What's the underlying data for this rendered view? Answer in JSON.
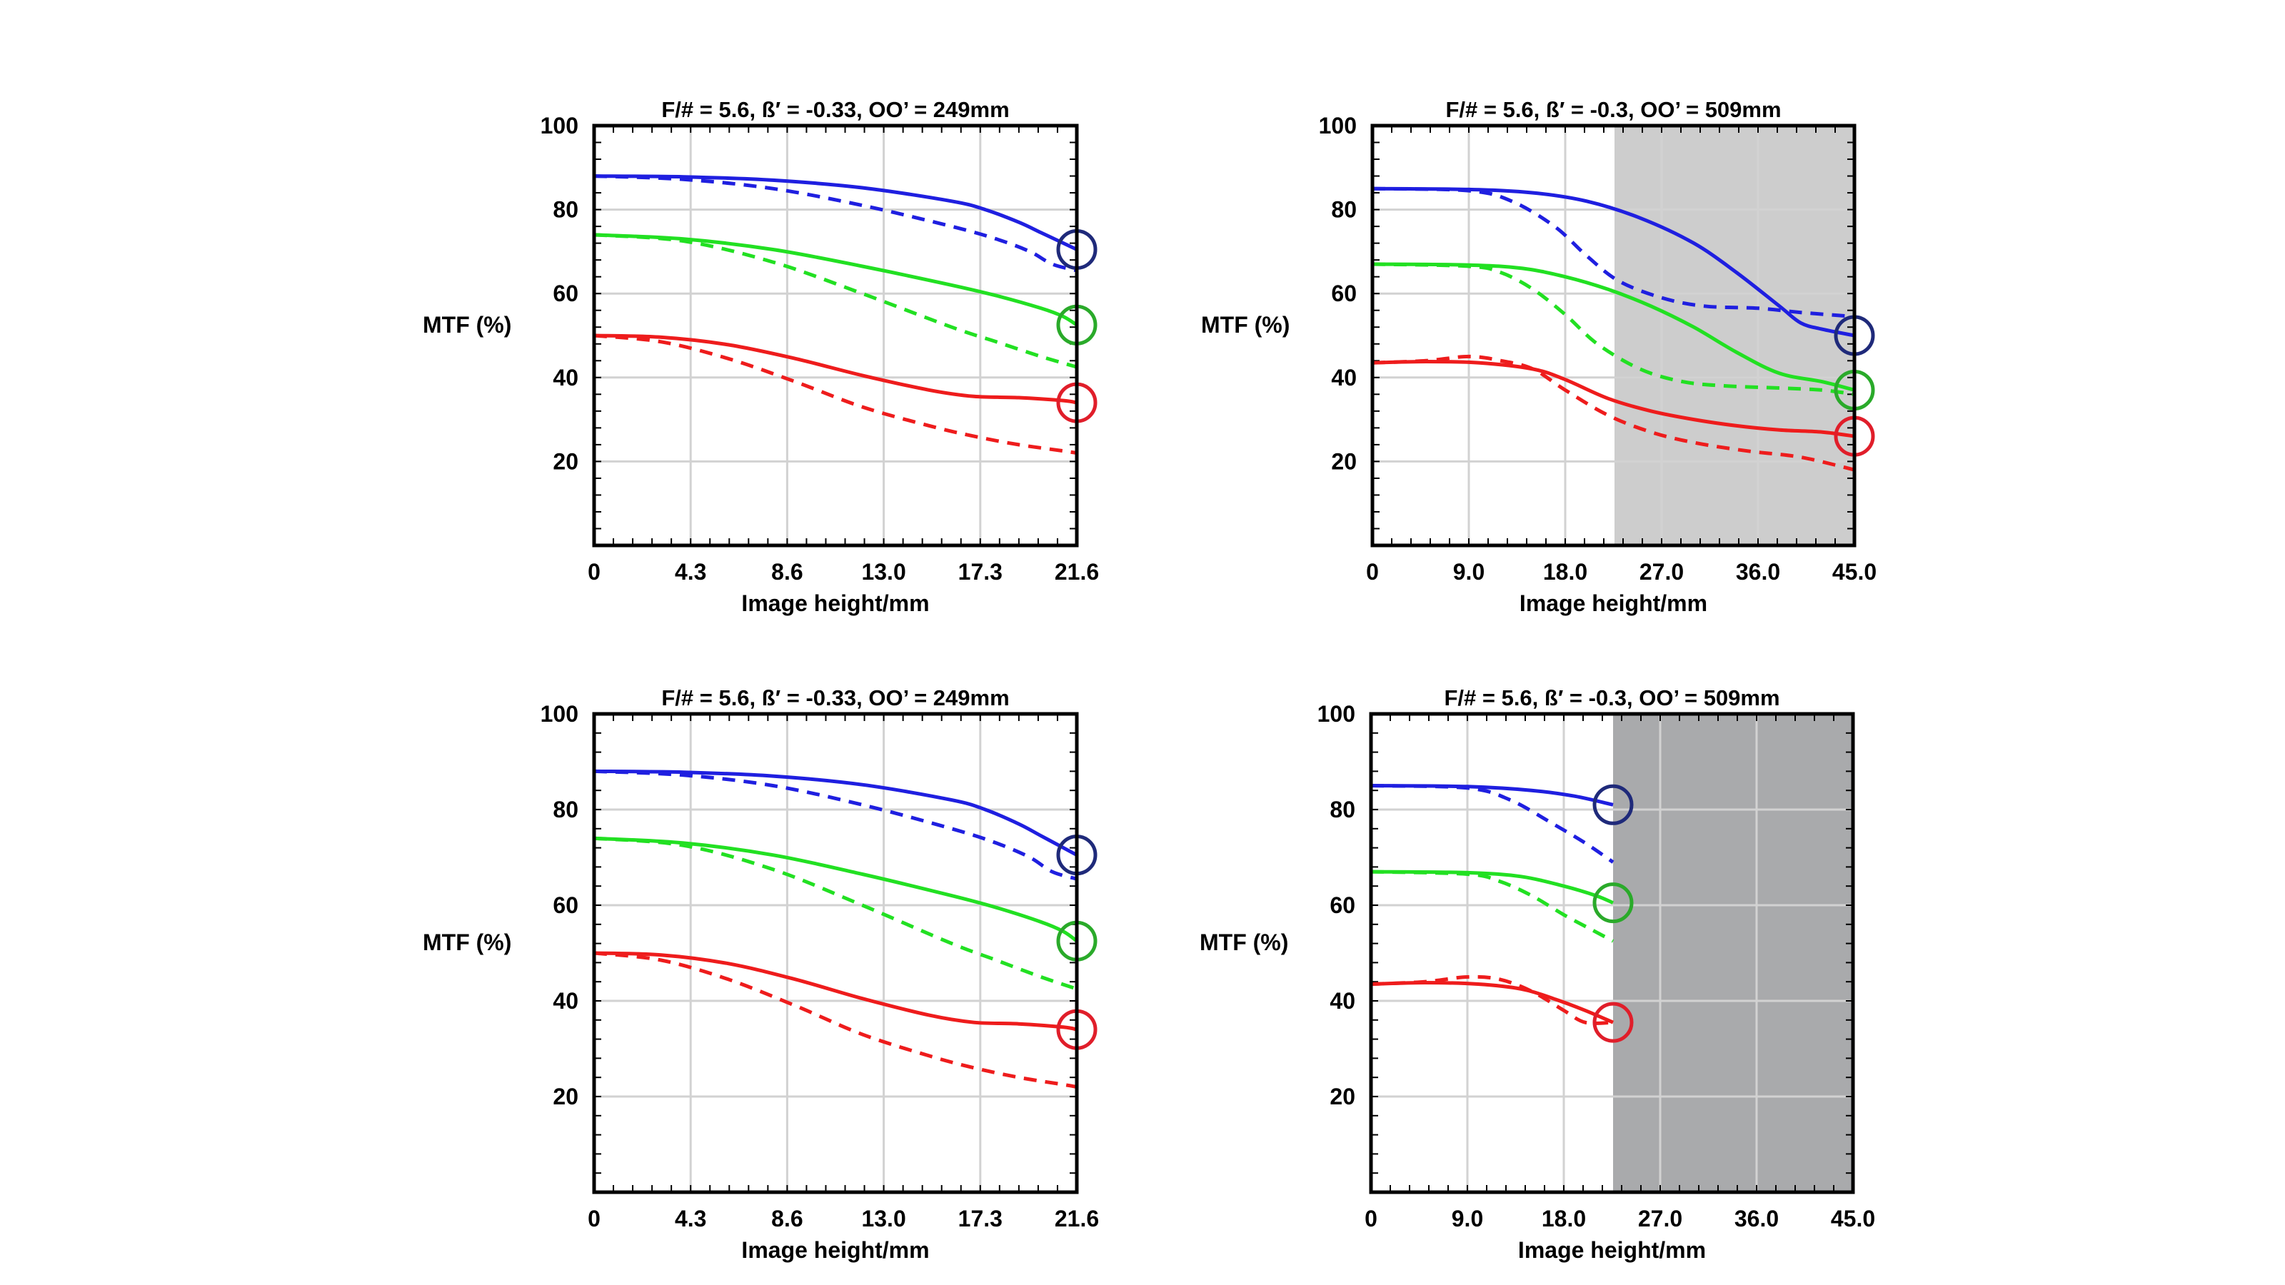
{
  "chart_data": [
    {
      "type": "line",
      "title": "F/# = 5.6, ß′ = -0.33, OO’ = 249mm",
      "xlabel": "Image height/mm",
      "ylabel": "MTF (%)",
      "xlim": [
        0,
        21.6
      ],
      "ylim": [
        0,
        100
      ],
      "x_ticks": [
        "0",
        "4.3",
        "8.6",
        "13.0",
        "17.3",
        "21.6"
      ],
      "y_ticks": [
        "20",
        "40",
        "60",
        "80",
        "100"
      ],
      "shaded_region": null,
      "colors": {
        "blue": "#1f1fe0",
        "green": "#22e022",
        "red": "#ee1c1c",
        "circle_blue": "#1f2a7a",
        "circle_green": "#2aaa2a",
        "circle_red": "#e01e2a"
      },
      "series": [
        {
          "color": "blue",
          "style": "solid",
          "x": [
            0,
            4,
            8,
            12,
            16,
            17.5,
            19,
            20,
            21,
            21.6
          ],
          "y": [
            88,
            87.8,
            87,
            85.2,
            82,
            80,
            77,
            74.5,
            72,
            70.5
          ]
        },
        {
          "color": "blue",
          "style": "dashed",
          "x": [
            0,
            4,
            8,
            12,
            16,
            18,
            19.5,
            20.5,
            21.6
          ],
          "y": [
            88,
            87.2,
            85,
            81,
            76,
            73,
            70,
            67,
            65.5
          ]
        },
        {
          "color": "green",
          "style": "solid",
          "x": [
            0,
            4,
            8,
            12,
            16,
            18,
            20,
            21,
            21.6
          ],
          "y": [
            74,
            73,
            70.5,
            66.5,
            62,
            59.5,
            56.5,
            54.5,
            52.5
          ]
        },
        {
          "color": "green",
          "style": "dashed",
          "x": [
            0,
            4,
            8,
            12,
            16,
            18,
            20,
            21.6
          ],
          "y": [
            74,
            72.5,
            67.5,
            60,
            52,
            48.5,
            45,
            42.5
          ]
        },
        {
          "color": "red",
          "style": "solid",
          "x": [
            0,
            3,
            6,
            9,
            12,
            15,
            17,
            19,
            21,
            21.6
          ],
          "y": [
            50,
            49.6,
            47.8,
            44.5,
            40.5,
            37,
            35.5,
            35.2,
            34.5,
            34
          ]
        },
        {
          "color": "red",
          "style": "dashed",
          "x": [
            0,
            3,
            6,
            9,
            12,
            15,
            17,
            19,
            21,
            21.6
          ],
          "y": [
            50,
            48.5,
            44.5,
            39,
            33,
            28.5,
            26,
            24,
            22.5,
            22
          ]
        }
      ],
      "markers": [
        {
          "color": "circle_blue",
          "x": 21.6,
          "y": 70.5
        },
        {
          "color": "circle_green",
          "x": 21.6,
          "y": 52.5
        },
        {
          "color": "circle_red",
          "x": 21.6,
          "y": 34
        }
      ]
    },
    {
      "type": "line",
      "title": "F/# = 5.6, ß′ = -0.3, OO’ = 509mm",
      "xlabel": "Image height/mm",
      "ylabel": "MTF (%)",
      "xlim": [
        0,
        45
      ],
      "ylim": [
        0,
        100
      ],
      "x_ticks": [
        "0",
        "9.0",
        "18.0",
        "27.0",
        "36.0",
        "45.0"
      ],
      "y_ticks": [
        "20",
        "40",
        "60",
        "80",
        "100"
      ],
      "shaded_region": {
        "from": 22.6,
        "to": 45,
        "color": "#cdcdcd"
      },
      "colors": {
        "blue": "#1f1fe0",
        "green": "#22e022",
        "red": "#ee1c1c",
        "circle_blue": "#1f2a7a",
        "circle_green": "#2aaa2a",
        "circle_red": "#e01e2a"
      },
      "series": [
        {
          "color": "blue",
          "style": "solid",
          "x": [
            0,
            9,
            15,
            20,
            25,
            30,
            34,
            38,
            40,
            42,
            45
          ],
          "y": [
            85,
            84.8,
            84,
            82,
            78,
            72,
            65,
            57,
            53,
            51.5,
            50
          ]
        },
        {
          "color": "blue",
          "style": "dashed",
          "x": [
            0,
            9,
            13,
            17,
            20,
            23,
            27,
            31,
            36,
            40,
            45
          ],
          "y": [
            85,
            84.5,
            82,
            76,
            69,
            63,
            59,
            57,
            56.5,
            55.5,
            54.5
          ]
        },
        {
          "color": "green",
          "style": "solid",
          "x": [
            0,
            9,
            14,
            18,
            22,
            26,
            30,
            34,
            38,
            42,
            45
          ],
          "y": [
            67,
            66.8,
            66,
            64,
            61,
            57,
            52,
            46,
            41,
            39,
            37
          ]
        },
        {
          "color": "green",
          "style": "dashed",
          "x": [
            0,
            9,
            12,
            15,
            18,
            21,
            25,
            29,
            33,
            38,
            42,
            45
          ],
          "y": [
            67,
            66.5,
            65,
            61,
            55,
            48,
            42,
            39,
            38,
            37.5,
            37,
            36
          ]
        },
        {
          "color": "red",
          "style": "solid",
          "x": [
            0,
            5,
            10,
            15,
            18,
            22,
            26,
            30,
            34,
            38,
            42,
            45
          ],
          "y": [
            43.5,
            43.8,
            43.5,
            42,
            39.5,
            35,
            32,
            30,
            28.5,
            27.5,
            27,
            26
          ]
        },
        {
          "color": "red",
          "style": "dashed",
          "x": [
            0,
            5,
            9,
            12,
            15,
            18,
            22,
            26,
            30,
            35,
            40,
            45
          ],
          "y": [
            43.5,
            44,
            45,
            44,
            42,
            37,
            31,
            27,
            24.5,
            22.5,
            21,
            18
          ]
        }
      ],
      "markers": [
        {
          "color": "circle_blue",
          "x": 45,
          "y": 50
        },
        {
          "color": "circle_green",
          "x": 45,
          "y": 37
        },
        {
          "color": "circle_red",
          "x": 45,
          "y": 26
        }
      ]
    },
    {
      "type": "line",
      "title": "F/# = 5.6, ß′ = -0.33, OO’ = 249mm",
      "xlabel": "Image height/mm",
      "ylabel": "MTF (%)",
      "xlim": [
        0,
        21.6
      ],
      "ylim": [
        0,
        100
      ],
      "x_ticks": [
        "0",
        "4.3",
        "8.6",
        "13.0",
        "17.3",
        "21.6"
      ],
      "y_ticks": [
        "20",
        "40",
        "60",
        "80",
        "100"
      ],
      "shaded_region": null,
      "colors": {
        "blue": "#1f1fe0",
        "green": "#22e022",
        "red": "#ee1c1c",
        "circle_blue": "#1f2a7a",
        "circle_green": "#2aaa2a",
        "circle_red": "#e01e2a"
      },
      "series": [
        {
          "color": "blue",
          "style": "solid",
          "x": [
            0,
            4,
            8,
            12,
            16,
            17.5,
            19,
            20,
            21,
            21.6
          ],
          "y": [
            88,
            87.8,
            87,
            85.2,
            82,
            80,
            77,
            74.5,
            72,
            70.5
          ]
        },
        {
          "color": "blue",
          "style": "dashed",
          "x": [
            0,
            4,
            8,
            12,
            16,
            18,
            19.5,
            20.5,
            21.6
          ],
          "y": [
            88,
            87.2,
            85,
            81,
            76,
            73,
            70,
            67,
            65.5
          ]
        },
        {
          "color": "green",
          "style": "solid",
          "x": [
            0,
            4,
            8,
            12,
            16,
            18,
            20,
            21,
            21.6
          ],
          "y": [
            74,
            73,
            70.5,
            66.5,
            62,
            59.5,
            56.5,
            54.5,
            52.5
          ]
        },
        {
          "color": "green",
          "style": "dashed",
          "x": [
            0,
            4,
            8,
            12,
            16,
            18,
            20,
            21.6
          ],
          "y": [
            74,
            72.5,
            67.5,
            60,
            52,
            48.5,
            45,
            42.5
          ]
        },
        {
          "color": "red",
          "style": "solid",
          "x": [
            0,
            3,
            6,
            9,
            12,
            15,
            17,
            19,
            21,
            21.6
          ],
          "y": [
            50,
            49.6,
            47.8,
            44.5,
            40.5,
            37,
            35.5,
            35.2,
            34.5,
            34
          ]
        },
        {
          "color": "red",
          "style": "dashed",
          "x": [
            0,
            3,
            6,
            9,
            12,
            15,
            17,
            19,
            21,
            21.6
          ],
          "y": [
            50,
            48.5,
            44.5,
            39,
            33,
            28.5,
            26,
            24,
            22.5,
            22
          ]
        }
      ],
      "markers": [
        {
          "color": "circle_blue",
          "x": 21.6,
          "y": 70.5
        },
        {
          "color": "circle_green",
          "x": 21.6,
          "y": 52.5
        },
        {
          "color": "circle_red",
          "x": 21.6,
          "y": 34
        }
      ]
    },
    {
      "type": "line",
      "title": "F/# = 5.6, ß′ = -0.3, OO’ = 509mm",
      "xlabel": "Image height/mm",
      "ylabel": "MTF (%)",
      "xlim": [
        0,
        45
      ],
      "ylim": [
        0,
        100
      ],
      "x_ticks": [
        "0",
        "9.0",
        "18.0",
        "27.0",
        "36.0",
        "45.0"
      ],
      "y_ticks": [
        "20",
        "40",
        "60",
        "80",
        "100"
      ],
      "shaded_region": {
        "from": 22.6,
        "to": 45,
        "color": "#a9aaac"
      },
      "colors": {
        "blue": "#1f1fe0",
        "green": "#22e022",
        "red": "#ee1c1c",
        "circle_blue": "#1f2a7a",
        "circle_green": "#2aaa2a",
        "circle_red": "#e01e2a"
      },
      "series": [
        {
          "color": "blue",
          "style": "solid",
          "x": [
            0,
            9,
            15,
            19,
            22.6
          ],
          "y": [
            85,
            84.8,
            84,
            82.8,
            81
          ]
        },
        {
          "color": "blue",
          "style": "dashed",
          "x": [
            0,
            9,
            13,
            17,
            20,
            22.6
          ],
          "y": [
            85,
            84.5,
            82,
            77,
            73,
            69
          ]
        },
        {
          "color": "green",
          "style": "solid",
          "x": [
            0,
            9,
            14,
            18,
            21,
            22.6
          ],
          "y": [
            67,
            66.8,
            66,
            64,
            62,
            60.5
          ]
        },
        {
          "color": "green",
          "style": "dashed",
          "x": [
            0,
            9,
            12,
            15,
            18,
            20.5,
            22.6
          ],
          "y": [
            67,
            66.5,
            65,
            62,
            58,
            55,
            52.5
          ]
        },
        {
          "color": "red",
          "style": "solid",
          "x": [
            0,
            5,
            10,
            14,
            17,
            20,
            22.6
          ],
          "y": [
            43.5,
            43.8,
            43.5,
            42.5,
            40.5,
            38,
            35.5
          ]
        },
        {
          "color": "red",
          "style": "dashed",
          "x": [
            0,
            5,
            9,
            12,
            15,
            18,
            20,
            22.6
          ],
          "y": [
            43.5,
            44,
            45,
            44.5,
            42,
            38,
            35.5,
            35.5
          ]
        }
      ],
      "markers": [
        {
          "color": "circle_blue",
          "x": 22.6,
          "y": 81
        },
        {
          "color": "circle_green",
          "x": 22.6,
          "y": 60.5
        },
        {
          "color": "circle_red",
          "x": 22.6,
          "y": 35.5
        }
      ]
    }
  ]
}
